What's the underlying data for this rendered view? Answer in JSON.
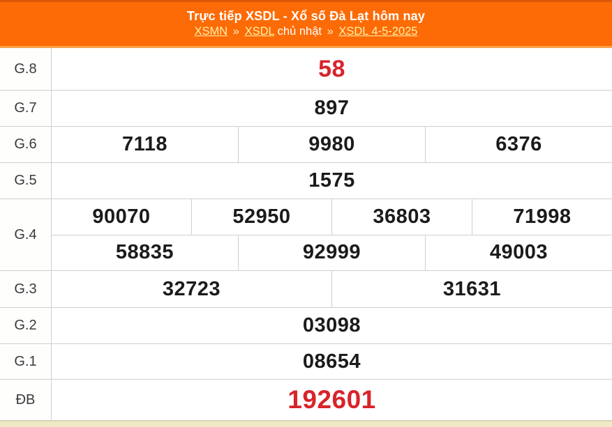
{
  "header": {
    "title": "Trực tiếp XSDL - Xổ số Đà Lạt hôm nay",
    "breadcrumb": [
      {
        "label": "XSMN",
        "type": "link"
      },
      {
        "label": "»",
        "type": "sep"
      },
      {
        "label": "XSDL",
        "type": "link"
      },
      {
        "label": "chủ nhật",
        "type": "text"
      },
      {
        "label": "»",
        "type": "sep"
      },
      {
        "label": "XSDL 4-5-2025",
        "type": "link"
      }
    ]
  },
  "results": {
    "rows": [
      {
        "label": "G.8",
        "groups": [
          [
            "58"
          ]
        ],
        "highlight": "g8"
      },
      {
        "label": "G.7",
        "groups": [
          [
            "897"
          ]
        ]
      },
      {
        "label": "G.6",
        "groups": [
          [
            "7118",
            "9980",
            "6376"
          ]
        ]
      },
      {
        "label": "G.5",
        "groups": [
          [
            "1575"
          ]
        ]
      },
      {
        "label": "G.4",
        "groups": [
          [
            "90070",
            "52950",
            "36803",
            "71998"
          ],
          [
            "58835",
            "92999",
            "49003"
          ]
        ]
      },
      {
        "label": "G.3",
        "groups": [
          [
            "32723",
            "31631"
          ]
        ]
      },
      {
        "label": "G.2",
        "groups": [
          [
            "03098"
          ]
        ]
      },
      {
        "label": "G.1",
        "groups": [
          [
            "08654"
          ]
        ]
      },
      {
        "label": "ĐB",
        "groups": [
          [
            "192601"
          ]
        ],
        "highlight": "db"
      }
    ]
  },
  "colors": {
    "header_orange": "#FD6B06",
    "header_top_border": "#DC5707",
    "header_bottom_border": "#F8A44C",
    "link_yellow": "#FFF3A8",
    "result_red": "#D8242B",
    "result_black": "#1B1B1B",
    "grid_border": "#CFCFCF",
    "bottom_strip": "#EFE9C5"
  }
}
